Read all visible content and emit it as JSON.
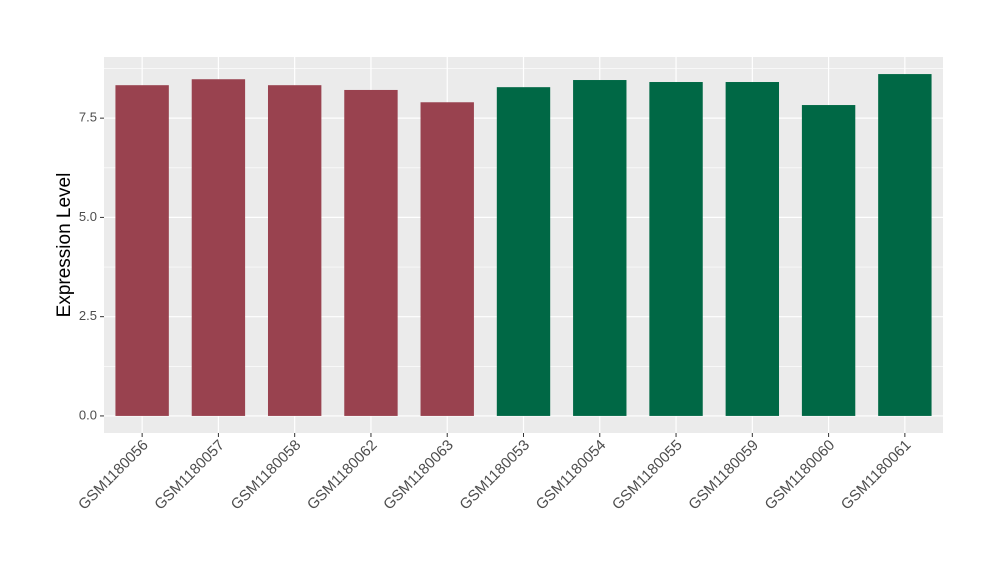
{
  "chart_data": {
    "type": "bar",
    "y_label": "Expression Level",
    "categories": [
      "GSM1180056",
      "GSM1180057",
      "GSM1180058",
      "GSM1180062",
      "GSM1180063",
      "GSM1180053",
      "GSM1180054",
      "GSM1180055",
      "GSM1180059",
      "GSM1180060",
      "GSM1180061"
    ],
    "values": [
      8.33,
      8.48,
      8.33,
      8.21,
      7.9,
      8.28,
      8.46,
      8.41,
      8.41,
      7.83,
      8.61
    ],
    "colors": [
      "#99424f",
      "#99424f",
      "#99424f",
      "#99424f",
      "#99424f",
      "#006845",
      "#006845",
      "#006845",
      "#006845",
      "#006845",
      "#006845"
    ],
    "ylim": [
      -0.43,
      9.04
    ],
    "yticks": [
      {
        "value": 0,
        "label": "0.0"
      },
      {
        "value": 2.5,
        "label": "2.5"
      },
      {
        "value": 5,
        "label": "5.0"
      },
      {
        "value": 7.5,
        "label": "7.5"
      }
    ],
    "grid": true
  }
}
